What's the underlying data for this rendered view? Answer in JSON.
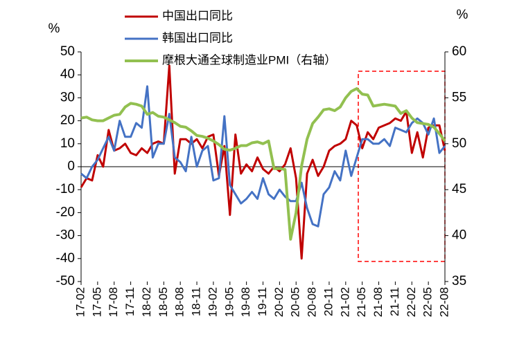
{
  "chart_data": {
    "type": "line",
    "y_label": "%",
    "y2_label": "%",
    "categories": [
      "17-02",
      null,
      null,
      "17-05",
      null,
      null,
      "17-08",
      null,
      null,
      "17-11",
      null,
      null,
      "18-02",
      null,
      null,
      "18-05",
      null,
      null,
      "18-08",
      null,
      null,
      "18-11",
      null,
      null,
      "19-02",
      null,
      null,
      "19-05",
      null,
      null,
      "19-08",
      null,
      null,
      "19-11",
      null,
      null,
      "20-02",
      null,
      null,
      "20-05",
      null,
      null,
      "20-08",
      null,
      null,
      "20-11",
      null,
      null,
      "21-02",
      null,
      null,
      "21-05",
      null,
      null,
      "21-08",
      null,
      null,
      "21-11",
      null,
      null,
      "22-02",
      null,
      null,
      "22-05",
      null,
      null,
      "22-08"
    ],
    "series": [
      {
        "name": "中国出口同比",
        "color": "#c00000",
        "values": [
          -9,
          -5,
          -6,
          5,
          0,
          16,
          7,
          8,
          10,
          6,
          5,
          8,
          6,
          10,
          11,
          10,
          44,
          -3,
          12,
          12,
          10,
          12,
          8,
          13,
          14,
          -4,
          9,
          -21,
          14,
          -3,
          1,
          -2,
          4,
          -1,
          -3,
          0,
          -2,
          1,
          8,
          -5,
          -40,
          -3,
          3,
          -4,
          0,
          7,
          9,
          10,
          12,
          20,
          18,
          8,
          15,
          12,
          17,
          18,
          19,
          21,
          20,
          24,
          6,
          15,
          4,
          17,
          18,
          18,
          7
        ]
      },
      {
        "name": "韩国出口同比",
        "color": "#4472c4",
        "values": [
          -3,
          -5,
          0,
          3,
          8,
          13,
          7,
          20,
          13,
          13,
          19,
          17,
          35,
          4,
          10,
          10,
          23,
          4,
          2,
          -2,
          13,
          0,
          7,
          9,
          -6,
          -5,
          22,
          -8,
          -12,
          -16,
          -14,
          -11,
          -14,
          -5,
          -12,
          -14,
          -10,
          -13,
          -15,
          -15,
          -7,
          -18,
          -25,
          -26,
          -12,
          -9,
          -2,
          -6,
          7,
          -4,
          4,
          12,
          12,
          10,
          10,
          12,
          9,
          17,
          16,
          15,
          19,
          21,
          19,
          14,
          21,
          6,
          9
        ]
      },
      {
        "name": "摩根大通全球制造业PMI（右轴）",
        "color": "#92c050",
        "axis": "y2",
        "values": [
          52.8,
          52.9,
          52.6,
          52.5,
          52.5,
          52.8,
          53.1,
          53.2,
          54.0,
          54.4,
          54.3,
          54.1,
          53.2,
          53.4,
          53.0,
          52.9,
          52.6,
          52.3,
          51.9,
          51.8,
          51.4,
          50.9,
          50.8,
          50.6,
          50.3,
          49.9,
          49.4,
          49.3,
          49.5,
          49.8,
          49.8,
          50.1,
          50.2,
          50.0,
          50.3,
          47.3,
          47.3,
          47.2,
          39.6,
          42.5,
          47.6,
          50.5,
          52.2,
          52.9,
          53.7,
          53.8,
          53.6,
          54.0,
          55.0,
          55.7,
          56.0,
          55.4,
          55.3,
          54.1,
          54.2,
          54.3,
          54.2,
          54.1,
          53.3,
          53.6,
          52.8,
          52.3,
          52.2,
          52.1,
          51.8,
          51.1,
          50.3
        ]
      }
    ],
    "ylim": [
      -50,
      50
    ],
    "yticks": [
      -50,
      -40,
      -30,
      -20,
      -10,
      0,
      10,
      20,
      30,
      40,
      50
    ],
    "y2lim": [
      35,
      60
    ],
    "y2ticks": [
      35,
      40,
      45,
      50,
      55,
      60
    ],
    "legend": "top-left"
  }
}
